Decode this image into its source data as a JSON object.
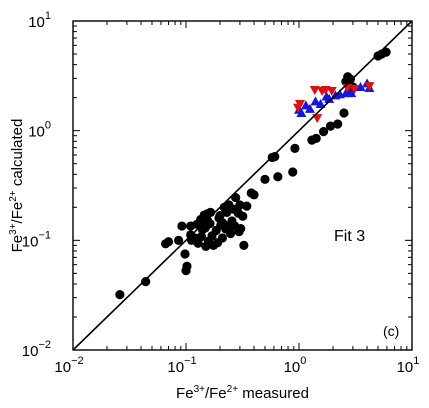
{
  "chart_data": {
    "type": "scatter",
    "xscale": "log",
    "yscale": "log",
    "xlim": [
      0.01,
      10
    ],
    "ylim": [
      0.01,
      10
    ],
    "xlabel": {
      "base": "Fe",
      "sup1": "3+",
      "mid": "/Fe",
      "sup2": "2+",
      "tail": " measured"
    },
    "ylabel": {
      "base": "Fe",
      "sup1": "3+",
      "mid": "/Fe",
      "sup2": "2+",
      "tail": " calculated"
    },
    "x_ticks": [
      {
        "value": 0.01,
        "base": "10",
        "exp": "−2"
      },
      {
        "value": 0.1,
        "base": "10",
        "exp": "−1"
      },
      {
        "value": 1,
        "base": "10",
        "exp": "0"
      },
      {
        "value": 10,
        "base": "10",
        "exp": "1"
      }
    ],
    "y_ticks": [
      {
        "value": 0.01,
        "base": "10",
        "exp": "−2"
      },
      {
        "value": 0.1,
        "base": "10",
        "exp": "−1"
      },
      {
        "value": 1,
        "base": "10",
        "exp": "0"
      },
      {
        "value": 10,
        "base": "10",
        "exp": "1"
      }
    ],
    "annotations": {
      "fit_label": "Fit 3",
      "panel_label": "(c)"
    },
    "reference_line": {
      "type": "1:1",
      "from": [
        0.01,
        0.01
      ],
      "to": [
        10,
        10
      ]
    },
    "grid": false,
    "colors": {
      "black": "#000000",
      "blue": "#1515e0",
      "red": "#e01010"
    },
    "series": [
      {
        "marker": "circle",
        "color": "#000000",
        "points": [
          [
            0.026,
            0.032
          ],
          [
            0.044,
            0.042
          ],
          [
            0.066,
            0.093
          ],
          [
            0.07,
            0.097
          ],
          [
            0.1,
            0.053
          ],
          [
            0.102,
            0.058
          ],
          [
            0.098,
            0.075
          ],
          [
            0.112,
            0.1
          ],
          [
            0.11,
            0.112
          ],
          [
            0.12,
            0.105
          ],
          [
            0.128,
            0.094
          ],
          [
            0.137,
            0.108
          ],
          [
            0.14,
            0.125
          ],
          [
            0.148,
            0.13
          ],
          [
            0.156,
            0.15
          ],
          [
            0.163,
            0.142
          ],
          [
            0.17,
            0.11
          ],
          [
            0.175,
            0.09
          ],
          [
            0.185,
            0.123
          ],
          [
            0.19,
            0.095
          ],
          [
            0.196,
            0.16
          ],
          [
            0.203,
            0.138
          ],
          [
            0.21,
            0.145
          ],
          [
            0.218,
            0.2
          ],
          [
            0.225,
            0.127
          ],
          [
            0.23,
            0.18
          ],
          [
            0.24,
            0.21
          ],
          [
            0.248,
            0.115
          ],
          [
            0.255,
            0.15
          ],
          [
            0.27,
            0.135
          ],
          [
            0.275,
            0.245
          ],
          [
            0.29,
            0.177
          ],
          [
            0.305,
            0.128
          ],
          [
            0.318,
            0.166
          ],
          [
            0.325,
            0.09
          ],
          [
            0.3,
            0.21
          ],
          [
            0.155,
            0.175
          ],
          [
            0.165,
            0.18
          ],
          [
            0.145,
            0.17
          ],
          [
            0.135,
            0.155
          ],
          [
            0.125,
            0.14
          ],
          [
            0.15,
            0.088
          ],
          [
            0.092,
            0.135
          ],
          [
            0.086,
            0.1
          ],
          [
            0.158,
            0.098
          ],
          [
            0.21,
            0.105
          ],
          [
            0.2,
            0.168
          ],
          [
            0.11,
            0.135
          ],
          [
            0.235,
            0.135
          ],
          [
            0.295,
            0.12
          ],
          [
            0.265,
            0.192
          ],
          [
            0.345,
            0.205
          ],
          [
            0.378,
            0.27
          ],
          [
            0.4,
            0.26
          ],
          [
            0.5,
            0.36
          ],
          [
            0.65,
            0.38
          ],
          [
            0.88,
            0.42
          ],
          [
            0.92,
            0.69
          ],
          [
            0.58,
            0.57
          ],
          [
            0.61,
            0.58
          ],
          [
            1.3,
            0.82
          ],
          [
            1.42,
            0.85
          ],
          [
            1.65,
            0.98
          ],
          [
            1.9,
            1.1
          ],
          [
            2.2,
            1.15
          ],
          [
            2.5,
            1.45
          ],
          [
            2.6,
            2.8
          ],
          [
            2.7,
            3.1
          ],
          [
            2.75,
            2.6
          ],
          [
            2.85,
            2.95
          ],
          [
            2.9,
            2.35
          ],
          [
            3.0,
            2.5
          ],
          [
            5.0,
            4.8
          ],
          [
            5.4,
            5.0
          ],
          [
            5.9,
            5.2
          ]
        ]
      },
      {
        "marker": "triangle-up",
        "color": "#1515e0",
        "points": [
          [
            1.0,
            1.55
          ],
          [
            1.05,
            1.45
          ],
          [
            1.15,
            1.7
          ],
          [
            1.25,
            1.58
          ],
          [
            1.4,
            1.85
          ],
          [
            1.55,
            1.75
          ],
          [
            1.75,
            2.05
          ],
          [
            1.85,
            1.95
          ],
          [
            2.1,
            2.1
          ],
          [
            2.3,
            2.15
          ],
          [
            2.6,
            2.2
          ],
          [
            2.9,
            2.2
          ],
          [
            3.5,
            2.5
          ],
          [
            4.0,
            2.7
          ],
          [
            4.2,
            2.45
          ]
        ]
      },
      {
        "marker": "triangle-down",
        "color": "#e01010",
        "points": [
          [
            0.98,
            1.62
          ],
          [
            1.02,
            1.75
          ],
          [
            1.38,
            2.35
          ],
          [
            1.45,
            1.3
          ],
          [
            1.6,
            2.3
          ],
          [
            1.72,
            2.35
          ],
          [
            1.95,
            2.3
          ],
          [
            2.7,
            2.45
          ],
          [
            3.1,
            2.4
          ],
          [
            4.2,
            2.55
          ]
        ]
      }
    ]
  }
}
